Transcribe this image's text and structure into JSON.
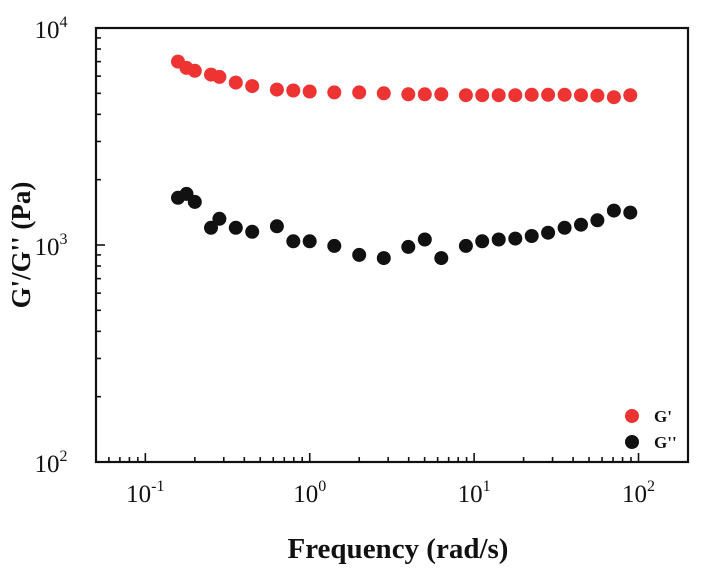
{
  "chart_data": {
    "type": "scatter",
    "xscale": "log",
    "yscale": "log",
    "xlim": [
      0.0501,
      200
    ],
    "ylim": [
      100,
      10000
    ],
    "xlabel": "Frequency (rad/s)",
    "ylabel": "G'/G'' (Pa)",
    "x_ticks": [
      {
        "base": "10",
        "exp": "-1",
        "value": 0.1
      },
      {
        "base": "10",
        "exp": "0",
        "value": 1
      },
      {
        "base": "10",
        "exp": "1",
        "value": 10
      },
      {
        "base": "10",
        "exp": "2",
        "value": 100
      }
    ],
    "y_ticks": [
      {
        "base": "10",
        "exp": "2",
        "value": 100
      },
      {
        "base": "10",
        "exp": "3",
        "value": 1000
      },
      {
        "base": "10",
        "exp": "4",
        "value": 10000
      }
    ],
    "grid": false,
    "legend_position": "bottom-right",
    "series": [
      {
        "name": "G'",
        "color": "#ee3333",
        "points": [
          [
            0.158,
            7000
          ],
          [
            0.178,
            6550
          ],
          [
            0.2,
            6350
          ],
          [
            0.251,
            6100
          ],
          [
            0.282,
            5950
          ],
          [
            0.355,
            5600
          ],
          [
            0.447,
            5400
          ],
          [
            0.631,
            5200
          ],
          [
            0.794,
            5150
          ],
          [
            1.0,
            5100
          ],
          [
            1.41,
            5050
          ],
          [
            2.0,
            5050
          ],
          [
            2.82,
            5000
          ],
          [
            3.98,
            4950
          ],
          [
            5.01,
            4950
          ],
          [
            6.31,
            4950
          ],
          [
            8.91,
            4900
          ],
          [
            11.2,
            4900
          ],
          [
            14.1,
            4900
          ],
          [
            17.8,
            4900
          ],
          [
            22.4,
            4920
          ],
          [
            28.2,
            4920
          ],
          [
            35.5,
            4920
          ],
          [
            44.7,
            4900
          ],
          [
            56.2,
            4880
          ],
          [
            70.8,
            4800
          ],
          [
            89.1,
            4900
          ]
        ]
      },
      {
        "name": "G''",
        "color": "#111111",
        "points": [
          [
            0.158,
            1650
          ],
          [
            0.178,
            1720
          ],
          [
            0.2,
            1580
          ],
          [
            0.251,
            1200
          ],
          [
            0.282,
            1320
          ],
          [
            0.355,
            1200
          ],
          [
            0.447,
            1150
          ],
          [
            0.631,
            1220
          ],
          [
            0.794,
            1040
          ],
          [
            1.0,
            1040
          ],
          [
            1.41,
            990
          ],
          [
            2.0,
            900
          ],
          [
            2.82,
            870
          ],
          [
            3.98,
            980
          ],
          [
            5.01,
            1060
          ],
          [
            6.31,
            870
          ],
          [
            8.91,
            990
          ],
          [
            11.2,
            1040
          ],
          [
            14.1,
            1060
          ],
          [
            17.8,
            1070
          ],
          [
            22.4,
            1100
          ],
          [
            28.2,
            1140
          ],
          [
            35.5,
            1200
          ],
          [
            44.7,
            1240
          ],
          [
            56.2,
            1300
          ],
          [
            70.8,
            1440
          ],
          [
            89.1,
            1410
          ]
        ]
      }
    ]
  }
}
